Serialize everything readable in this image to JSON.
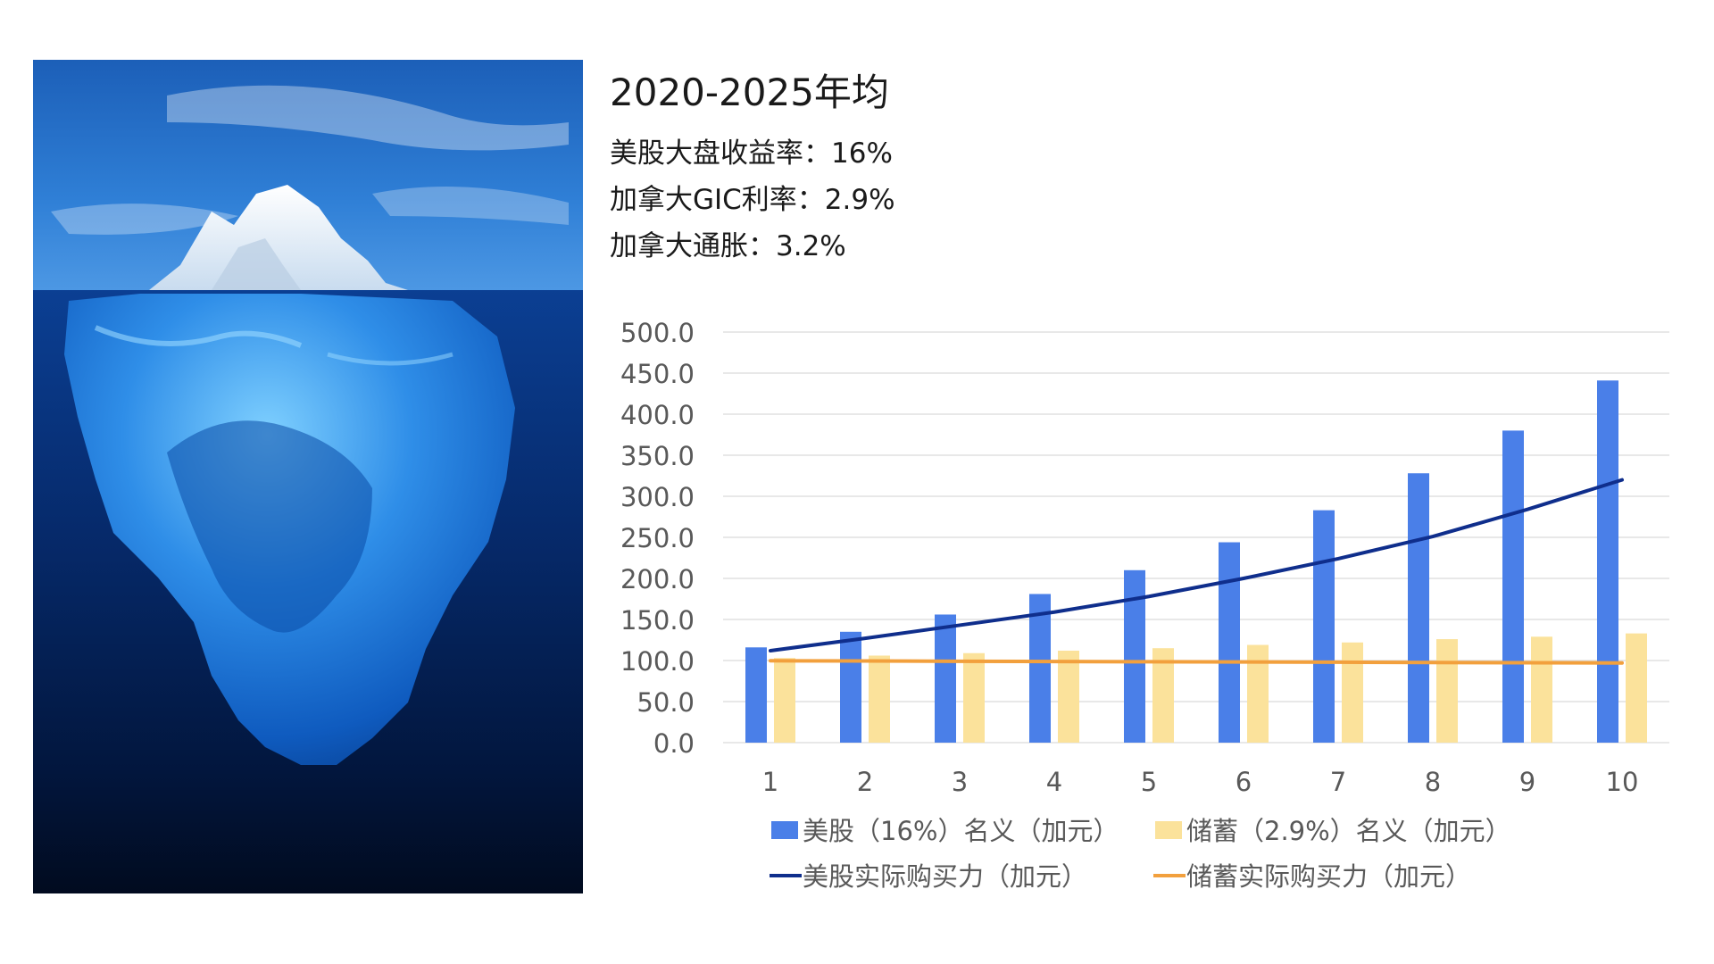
{
  "header": {
    "title": "2020-2025年均",
    "stats": [
      "美股大盘收益率：16%",
      "加拿大GIC利率：2.9%",
      "加拿大通胀：3.2%"
    ]
  },
  "image": {
    "description_icon": "iceberg-photo"
  },
  "chart_data": {
    "type": "bar",
    "categories": [
      "1",
      "2",
      "3",
      "4",
      "5",
      "6",
      "7",
      "8",
      "9",
      "10"
    ],
    "ylim": [
      0,
      500
    ],
    "yticks": [
      "0.0",
      "50.0",
      "100.0",
      "150.0",
      "200.0",
      "250.0",
      "300.0",
      "350.0",
      "400.0",
      "450.0",
      "500.0"
    ],
    "grid": true,
    "legend_position": "bottom",
    "series": [
      {
        "name": "美股（16%）名义（加元）",
        "kind": "bar",
        "color": "#4a7fe8",
        "values": [
          116,
          135,
          156,
          181,
          210,
          244,
          283,
          328,
          380,
          441
        ]
      },
      {
        "name": "储蓄（2.9%）名义（加元）",
        "kind": "bar",
        "color": "#fbe29b",
        "values": [
          103,
          106,
          109,
          112,
          115,
          119,
          122,
          126,
          129,
          133
        ]
      },
      {
        "name": "美股实际购买力（加元）",
        "kind": "line",
        "color": "#0f2e8c",
        "values": [
          112,
          127,
          143,
          159,
          178,
          200,
          224,
          251,
          284,
          320
        ]
      },
      {
        "name": "储蓄实际购买力（加元）",
        "kind": "line",
        "color": "#f2a03d",
        "values": [
          99.7,
          99.4,
          99.1,
          98.8,
          98.5,
          98.2,
          97.9,
          97.6,
          97.3,
          97.0
        ]
      }
    ]
  }
}
